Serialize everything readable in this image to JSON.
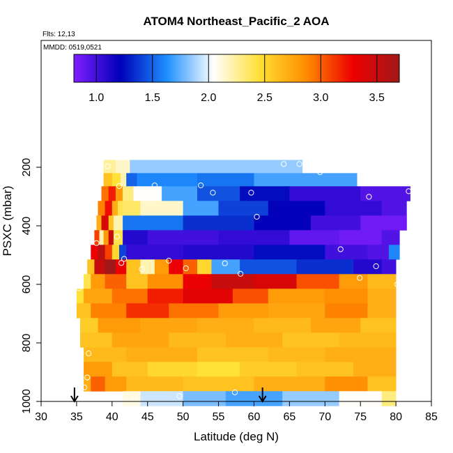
{
  "chart_data": {
    "type": "heatmap",
    "title": "ATOM4 Northeast_Pacific_2 AOA",
    "flights_text": "Flts: 12,13",
    "dates_text": "MMDD: 0519,0521",
    "xlabel": "Latitude (deg N)",
    "ylabel": "PSXC (mbar)",
    "xlim": [
      30,
      85
    ],
    "ylim": [
      1000,
      0
    ],
    "x_ticks": [
      "30",
      "35",
      "40",
      "45",
      "50",
      "55",
      "60",
      "65",
      "70",
      "75",
      "80",
      "85"
    ],
    "y_ticks": [
      "200",
      "400",
      "600",
      "800",
      "1000"
    ],
    "colorbar": {
      "min": 0.8,
      "max": 3.7,
      "tick_values": [
        1.0,
        1.5,
        2.0,
        2.5,
        3.0,
        3.5
      ],
      "tick_labels": [
        "1.0",
        "1.5",
        "2.0",
        "2.5",
        "3.0",
        "3.5"
      ],
      "colors": [
        "#7f1fff",
        "#0000b8",
        "#1e90ff",
        "#ffffff",
        "#ffe033",
        "#ff8c00",
        "#ee0000",
        "#a01818"
      ]
    },
    "arrows_latitude": [
      34.7,
      61.2
    ],
    "layers": [
      {
        "p": 200,
        "segs": [
          [
            38.8,
            40.5,
            2.25
          ],
          [
            40.5,
            42.5,
            2.15
          ],
          [
            42.5,
            66.8,
            1.85
          ]
        ]
      },
      {
        "p": 245,
        "segs": [
          [
            38.8,
            40.0,
            2.6
          ],
          [
            40.0,
            41.2,
            2.45
          ],
          [
            41.2,
            42.0,
            2.2
          ],
          [
            42.0,
            43.5,
            1.5
          ],
          [
            43.5,
            52.0,
            1.6
          ],
          [
            52.0,
            60.0,
            1.55
          ],
          [
            60.0,
            74.5,
            1.7
          ]
        ]
      },
      {
        "p": 290,
        "segs": [
          [
            38.5,
            39.5,
            2.95
          ],
          [
            39.5,
            40.5,
            3.2
          ],
          [
            40.5,
            41.5,
            2.8
          ],
          [
            41.5,
            43.0,
            2.3
          ],
          [
            43.0,
            47.0,
            2.05
          ],
          [
            47.0,
            52.0,
            1.7
          ],
          [
            52.0,
            58.0,
            1.45
          ],
          [
            58.0,
            65.0,
            1.25
          ],
          [
            65.0,
            75.0,
            1.05
          ],
          [
            75.0,
            82.0,
            0.95
          ]
        ]
      },
      {
        "p": 340,
        "segs": [
          [
            38.0,
            39.0,
            2.9
          ],
          [
            39.0,
            40.0,
            3.25
          ],
          [
            40.0,
            40.8,
            2.7
          ],
          [
            40.8,
            41.5,
            2.4
          ],
          [
            41.5,
            44.0,
            2.35
          ],
          [
            44.0,
            50.0,
            2.15
          ],
          [
            50.0,
            55.0,
            1.7
          ],
          [
            55.0,
            62.0,
            1.4
          ],
          [
            62.0,
            70.0,
            1.2
          ],
          [
            70.0,
            78.0,
            1.05
          ],
          [
            78.0,
            81.5,
            0.95
          ]
        ]
      },
      {
        "p": 390,
        "segs": [
          [
            37.8,
            38.5,
            2.7
          ],
          [
            38.5,
            39.5,
            3.4
          ],
          [
            39.5,
            40.2,
            2.6
          ],
          [
            40.2,
            41.5,
            2.2
          ],
          [
            41.5,
            50.0,
            1.55
          ],
          [
            50.0,
            60.0,
            1.35
          ],
          [
            60.0,
            68.0,
            1.2
          ],
          [
            68.0,
            75.0,
            1.0
          ],
          [
            75.0,
            81.5,
            0.85
          ]
        ]
      },
      {
        "p": 440,
        "segs": [
          [
            37.5,
            38.2,
            3.1
          ],
          [
            38.2,
            38.8,
            2.2
          ],
          [
            38.8,
            39.5,
            2.8
          ],
          [
            39.5,
            40.2,
            3.5
          ],
          [
            40.2,
            41.5,
            2.4
          ],
          [
            41.5,
            45.0,
            1.1
          ],
          [
            45.0,
            55.0,
            1.0
          ],
          [
            55.0,
            65.0,
            1.05
          ],
          [
            65.0,
            72.0,
            0.9
          ],
          [
            72.0,
            78.0,
            0.85
          ],
          [
            78.0,
            80.5,
            0.95
          ]
        ]
      },
      {
        "p": 490,
        "segs": [
          [
            37.0,
            38.0,
            3.3
          ],
          [
            38.0,
            39.0,
            3.55
          ],
          [
            39.0,
            40.0,
            3.1
          ],
          [
            40.0,
            41.0,
            2.5
          ],
          [
            41.0,
            42.0,
            1.4
          ],
          [
            42.0,
            50.0,
            1.05
          ],
          [
            50.0,
            60.0,
            1.1
          ],
          [
            60.0,
            70.0,
            1.25
          ],
          [
            70.0,
            76.0,
            1.0
          ],
          [
            76.0,
            79.0,
            0.95
          ],
          [
            79.0,
            80.5,
            1.6
          ]
        ]
      },
      {
        "p": 540,
        "segs": [
          [
            36.5,
            37.5,
            2.6
          ],
          [
            37.5,
            39.0,
            3.5
          ],
          [
            39.0,
            40.5,
            3.7
          ],
          [
            40.5,
            42.0,
            3.3
          ],
          [
            42.0,
            44.0,
            2.6
          ],
          [
            44.0,
            46.0,
            2.2
          ],
          [
            46.0,
            48.0,
            2.8
          ],
          [
            48.0,
            50.0,
            3.3
          ],
          [
            50.0,
            52.0,
            3.0
          ],
          [
            52.0,
            54.0,
            2.5
          ],
          [
            54.0,
            58.0,
            1.7
          ],
          [
            58.0,
            66.0,
            1.45
          ],
          [
            66.0,
            74.0,
            1.35
          ],
          [
            74.0,
            78.0,
            1.1
          ],
          [
            78.0,
            80.0,
            1.0
          ]
        ]
      },
      {
        "p": 590,
        "segs": [
          [
            36.0,
            37.0,
            2.4
          ],
          [
            37.0,
            39.0,
            2.8
          ],
          [
            39.0,
            42.0,
            3.0
          ],
          [
            42.0,
            45.0,
            2.6
          ],
          [
            45.0,
            50.0,
            2.85
          ],
          [
            50.0,
            54.0,
            3.3
          ],
          [
            54.0,
            60.0,
            3.5
          ],
          [
            60.0,
            66.0,
            3.4
          ],
          [
            66.0,
            72.0,
            3.05
          ],
          [
            72.0,
            76.0,
            2.8
          ],
          [
            76.0,
            80.0,
            2.65
          ]
        ]
      },
      {
        "p": 640,
        "segs": [
          [
            35.0,
            36.0,
            2.45
          ],
          [
            36.0,
            40.0,
            2.75
          ],
          [
            40.0,
            45.0,
            2.95
          ],
          [
            45.0,
            50.0,
            3.2
          ],
          [
            50.0,
            57.0,
            3.35
          ],
          [
            57.0,
            62.0,
            3.05
          ],
          [
            62.0,
            70.0,
            2.8
          ],
          [
            70.0,
            76.0,
            2.85
          ],
          [
            76.0,
            80.0,
            2.7
          ]
        ]
      },
      {
        "p": 690,
        "segs": [
          [
            35.0,
            37.0,
            2.6
          ],
          [
            37.0,
            42.0,
            2.9
          ],
          [
            42.0,
            48.0,
            3.15
          ],
          [
            48.0,
            55.0,
            2.95
          ],
          [
            55.0,
            62.0,
            2.8
          ],
          [
            62.0,
            70.0,
            2.75
          ],
          [
            70.0,
            76.0,
            2.9
          ],
          [
            76.0,
            80.0,
            2.7
          ]
        ]
      },
      {
        "p": 740,
        "segs": [
          [
            35.5,
            38.0,
            2.55
          ],
          [
            38.0,
            44.0,
            2.8
          ],
          [
            44.0,
            52.0,
            2.75
          ],
          [
            52.0,
            60.0,
            2.7
          ],
          [
            60.0,
            68.0,
            2.65
          ],
          [
            68.0,
            75.0,
            2.75
          ],
          [
            75.0,
            80.0,
            2.6
          ]
        ]
      },
      {
        "p": 790,
        "segs": [
          [
            35.5,
            40.0,
            2.6
          ],
          [
            40.0,
            48.0,
            2.75
          ],
          [
            48.0,
            56.0,
            2.65
          ],
          [
            56.0,
            64.0,
            2.7
          ],
          [
            64.0,
            72.0,
            2.6
          ],
          [
            72.0,
            80.0,
            2.65
          ]
        ]
      },
      {
        "p": 840,
        "segs": [
          [
            36.0,
            42.0,
            2.65
          ],
          [
            42.0,
            52.0,
            2.7
          ],
          [
            52.0,
            62.0,
            2.6
          ],
          [
            62.0,
            70.0,
            2.65
          ],
          [
            70.0,
            80.0,
            2.7
          ]
        ]
      },
      {
        "p": 890,
        "segs": [
          [
            36.0,
            40.0,
            2.8
          ],
          [
            40.0,
            45.0,
            2.6
          ],
          [
            45.0,
            52.0,
            2.5
          ],
          [
            52.0,
            58.0,
            2.45
          ],
          [
            58.0,
            66.0,
            2.55
          ],
          [
            66.0,
            74.0,
            2.6
          ],
          [
            74.0,
            80.0,
            2.7
          ]
        ]
      },
      {
        "p": 940,
        "segs": [
          [
            36.0,
            37.0,
            2.7
          ],
          [
            37.0,
            39.0,
            3.0
          ],
          [
            39.0,
            42.0,
            2.8
          ],
          [
            42.0,
            50.0,
            2.65
          ],
          [
            50.0,
            60.0,
            2.6
          ],
          [
            60.0,
            70.0,
            2.7
          ],
          [
            70.0,
            76.0,
            2.85
          ],
          [
            76.0,
            80.0,
            2.6
          ]
        ]
      },
      {
        "p": 990,
        "segs": [
          [
            41.5,
            44.0,
            2.1
          ],
          [
            44.0,
            50.0,
            1.95
          ],
          [
            50.0,
            56.0,
            1.8
          ],
          [
            56.0,
            64.0,
            1.7
          ],
          [
            64.0,
            72.0,
            1.85
          ],
          [
            72.0,
            78.0,
            2.05
          ],
          [
            78.0,
            80.0,
            2.3
          ]
        ]
      }
    ],
    "points": [
      [
        39.4,
        197
      ],
      [
        66.4,
        189
      ],
      [
        64.2,
        189
      ],
      [
        69.3,
        217
      ],
      [
        41.0,
        264
      ],
      [
        46.0,
        262
      ],
      [
        52.5,
        262
      ],
      [
        54.2,
        287
      ],
      [
        59.6,
        287
      ],
      [
        76.2,
        301
      ],
      [
        81.8,
        282
      ],
      [
        60.4,
        369
      ],
      [
        40.7,
        437
      ],
      [
        37.8,
        459
      ],
      [
        72.2,
        480
      ],
      [
        41.7,
        513
      ],
      [
        41.3,
        527
      ],
      [
        44.2,
        548
      ],
      [
        48.0,
        519
      ],
      [
        50.4,
        545
      ],
      [
        55.9,
        528
      ],
      [
        58.1,
        564
      ],
      [
        77.2,
        538
      ],
      [
        74.9,
        578
      ],
      [
        80.2,
        600
      ],
      [
        35.3,
        613
      ],
      [
        36.7,
        836
      ],
      [
        36.5,
        918
      ],
      [
        36.1,
        952
      ],
      [
        43.1,
        994
      ],
      [
        49.5,
        982
      ],
      [
        57.3,
        969
      ],
      [
        73.8,
        999
      ]
    ]
  }
}
